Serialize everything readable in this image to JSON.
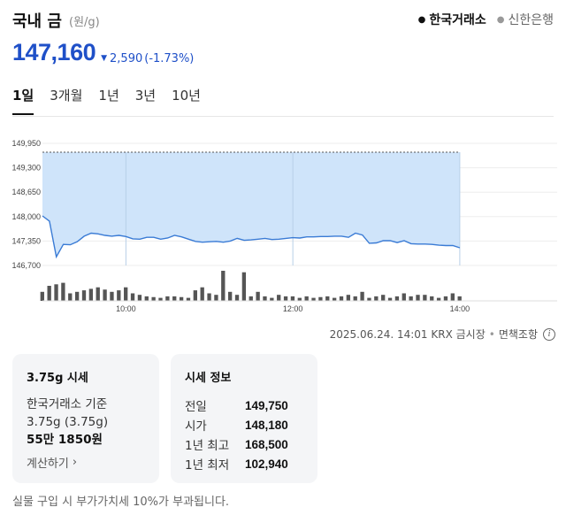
{
  "header": {
    "title": "국내 금",
    "unit": "(원/g)",
    "sources": [
      {
        "label": "한국거래소",
        "active": true
      },
      {
        "label": "신한은행",
        "active": false
      }
    ]
  },
  "price": {
    "current": "147,160",
    "change": "2,590",
    "change_pct": "(-1.73%)",
    "direction": "down",
    "color": "#1f50c8"
  },
  "period_tabs": [
    "1일",
    "3개월",
    "1년",
    "3년",
    "10년"
  ],
  "chart_data": {
    "type": "area",
    "title": "",
    "xlabel": "",
    "ylabel": "",
    "ylim": [
      146700,
      149950
    ],
    "y_ticks": [
      "149,950",
      "149,300",
      "148,650",
      "148,000",
      "147,350",
      "146,700"
    ],
    "x_ticks": [
      "10:00",
      "12:00",
      "14:00"
    ],
    "reference_line": 149750,
    "area_color": "#cfe4fa",
    "line_color": "#3a7bd5",
    "series": [
      {
        "x": [
          "09:00",
          "09:05",
          "09:10",
          "09:15",
          "09:20",
          "09:25",
          "09:30",
          "09:35",
          "09:40",
          "09:45",
          "09:50",
          "09:55",
          "10:00",
          "10:05",
          "10:10",
          "10:15",
          "10:20",
          "10:25",
          "10:30",
          "10:35",
          "10:40",
          "10:45",
          "10:50",
          "10:55",
          "11:00",
          "11:05",
          "11:10",
          "11:15",
          "11:20",
          "11:25",
          "11:30",
          "11:35",
          "11:40",
          "11:45",
          "11:50",
          "11:55",
          "12:00",
          "12:05",
          "12:10",
          "12:15",
          "12:20",
          "12:25",
          "12:30",
          "12:35",
          "12:40",
          "12:45",
          "12:50",
          "12:55",
          "13:00",
          "13:05",
          "13:10",
          "13:15",
          "13:20",
          "13:25",
          "13:30",
          "13:35",
          "13:40",
          "13:45",
          "13:50",
          "13:55",
          "14:00"
        ],
        "values": [
          148020,
          147880,
          146930,
          147260,
          147250,
          147330,
          147480,
          147560,
          147540,
          147500,
          147480,
          147500,
          147470,
          147410,
          147400,
          147450,
          147450,
          147400,
          147430,
          147500,
          147460,
          147400,
          147340,
          147320,
          147330,
          147340,
          147320,
          147350,
          147420,
          147370,
          147380,
          147400,
          147420,
          147390,
          147400,
          147420,
          147440,
          147430,
          147460,
          147460,
          147470,
          147470,
          147480,
          147480,
          147450,
          147560,
          147510,
          147290,
          147300,
          147360,
          147360,
          147310,
          147360,
          147280,
          147270,
          147270,
          147260,
          147240,
          147230,
          147230,
          147170
        ]
      }
    ],
    "volume": [
      12,
      20,
      22,
      24,
      10,
      12,
      14,
      16,
      18,
      15,
      12,
      14,
      18,
      10,
      8,
      6,
      5,
      4,
      6,
      6,
      5,
      4,
      14,
      18,
      10,
      8,
      40,
      12,
      8,
      38,
      6,
      12,
      6,
      4,
      8,
      6,
      6,
      4,
      6,
      4,
      5,
      6,
      4,
      6,
      8,
      6,
      12,
      4,
      6,
      8,
      4,
      6,
      10,
      6,
      8,
      8,
      6,
      4,
      6,
      10,
      6
    ]
  },
  "footnote": {
    "timestamp": "2025.06.24. 14:01 KRX 금시장",
    "disclaimer": "면책조항"
  },
  "card_left": {
    "title": "3.75g 시세",
    "line1": "한국거래소 기준",
    "line2": "3.75g (3.75g)",
    "price": "55만 1850원",
    "link": "계산하기"
  },
  "card_right": {
    "title": "시세 정보",
    "rows": [
      {
        "label": "전일",
        "value": "149,750"
      },
      {
        "label": "시가",
        "value": "148,180"
      },
      {
        "label": "1년 최고",
        "value": "168,500"
      },
      {
        "label": "1년 최저",
        "value": "102,940"
      }
    ]
  },
  "bottom_note": "실물 구입 시 부가가치세 10%가 부과됩니다."
}
